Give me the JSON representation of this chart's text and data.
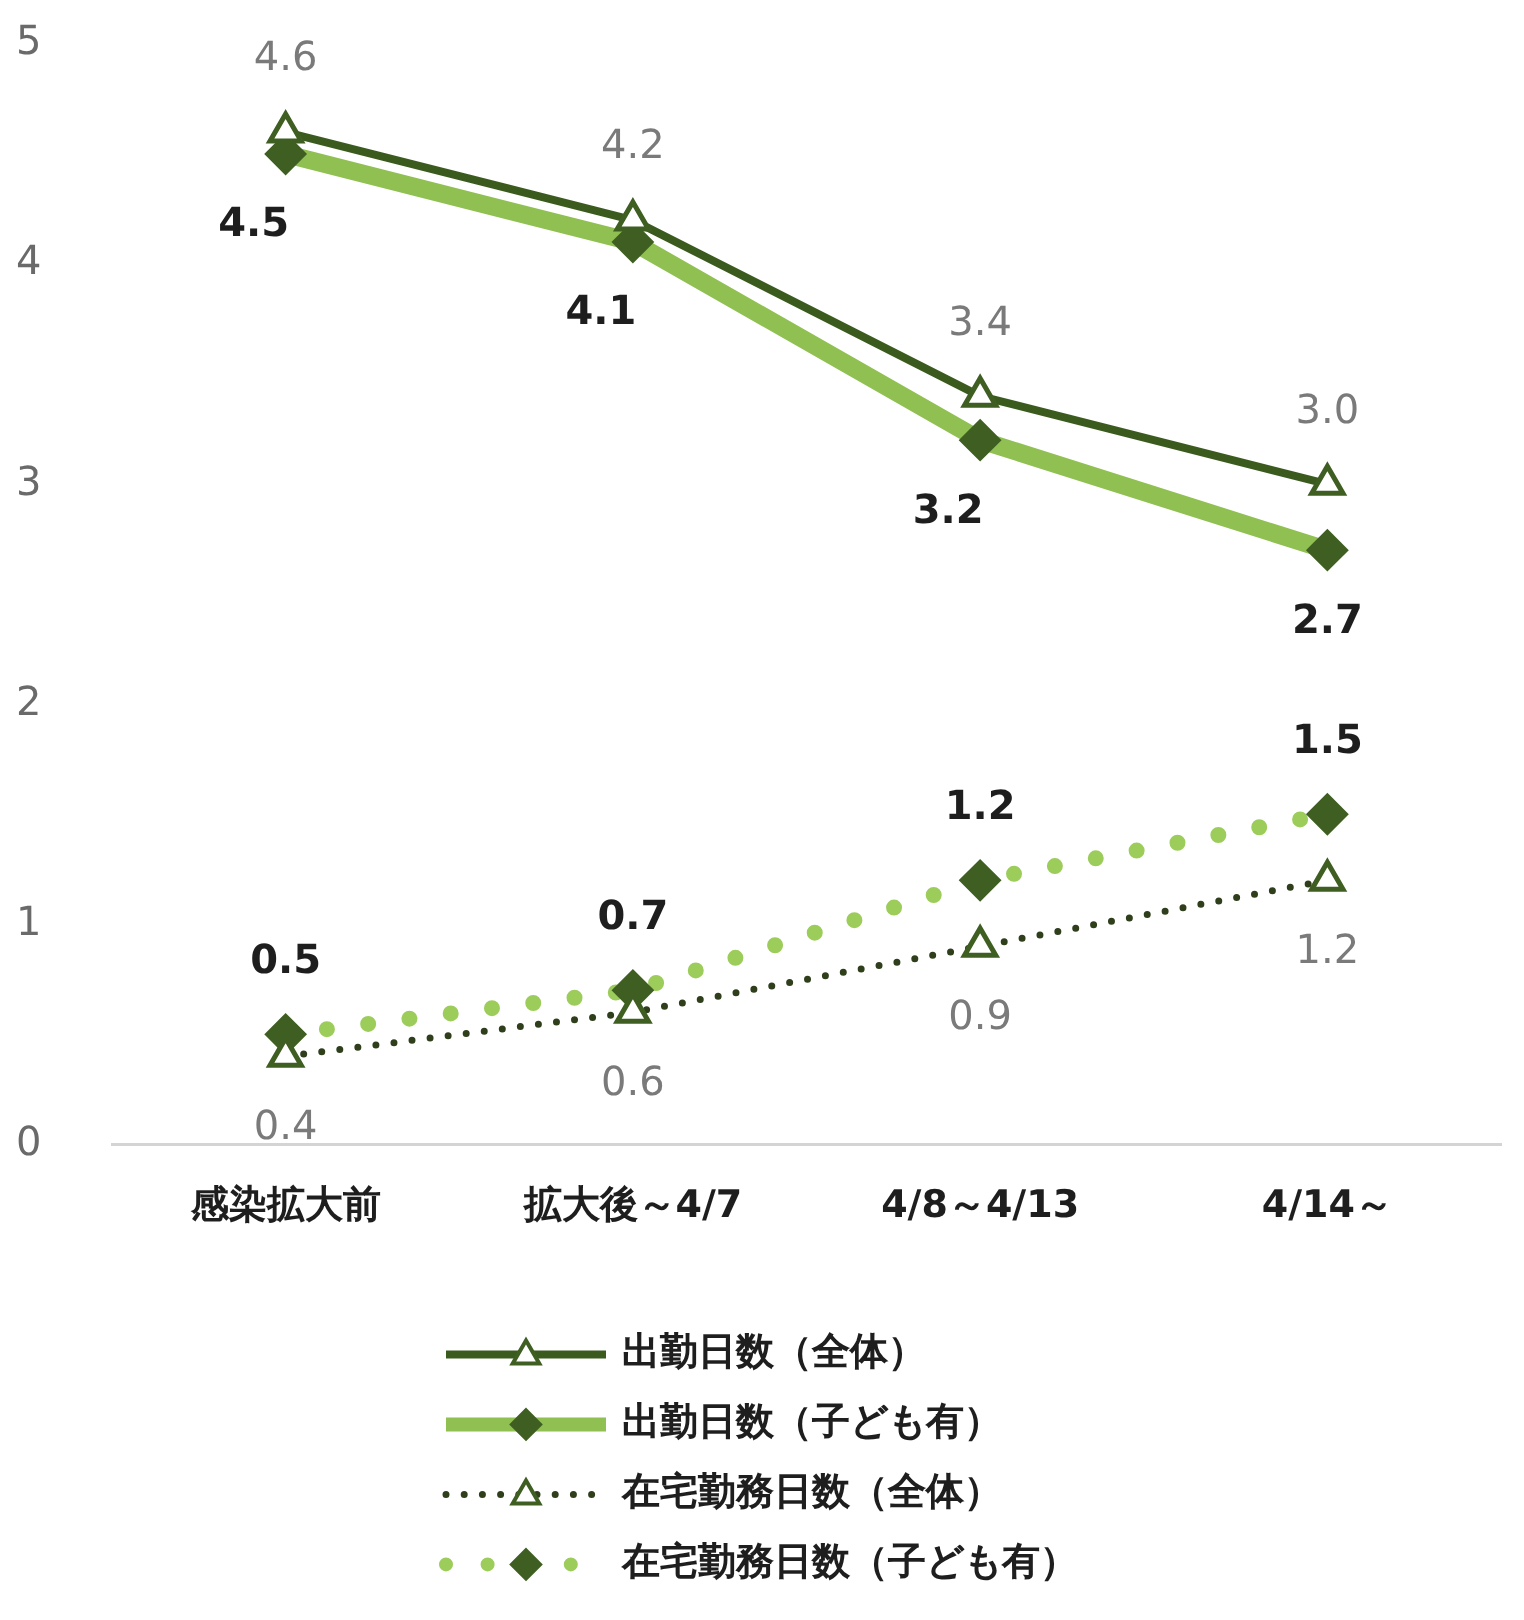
{
  "chart_data": {
    "type": "line",
    "categories": [
      "感染拡大前",
      "拡大後～4/7",
      "4/8～4/13",
      "4/14～"
    ],
    "series": [
      {
        "name": "出勤日数（全体）",
        "color": "#3b5a1e",
        "values": [
          4.6,
          4.2,
          3.4,
          3.0
        ],
        "value_labels": [
          "4.6",
          "4.2",
          "3.4",
          "3.0"
        ],
        "marker": "triangle",
        "line_style": "solid"
      },
      {
        "name": "出勤日数（子ども有）",
        "color": "#8fc051",
        "values": [
          4.5,
          4.1,
          3.2,
          2.7
        ],
        "value_labels": [
          "4.5",
          "4.1",
          "3.2",
          "2.7"
        ],
        "marker": "diamond",
        "line_style": "solid"
      },
      {
        "name": "在宅勤務日数（全体）",
        "color": "#2f3f1c",
        "values": [
          0.4,
          0.6,
          0.9,
          1.2
        ],
        "value_labels": [
          "0.4",
          "0.6",
          "0.9",
          "1.2"
        ],
        "marker": "triangle",
        "line_style": "dotted"
      },
      {
        "name": "在宅勤務日数（子ども有）",
        "color": "#9ccc5a",
        "values": [
          0.5,
          0.7,
          1.2,
          1.5
        ],
        "value_labels": [
          "0.5",
          "0.7",
          "1.2",
          "1.5"
        ],
        "marker": "diamond",
        "line_style": "dotted"
      }
    ],
    "ylim": [
      0,
      5
    ],
    "yticks": [
      0,
      1,
      2,
      3,
      4,
      5
    ],
    "grid": false,
    "legend": "bottom"
  }
}
